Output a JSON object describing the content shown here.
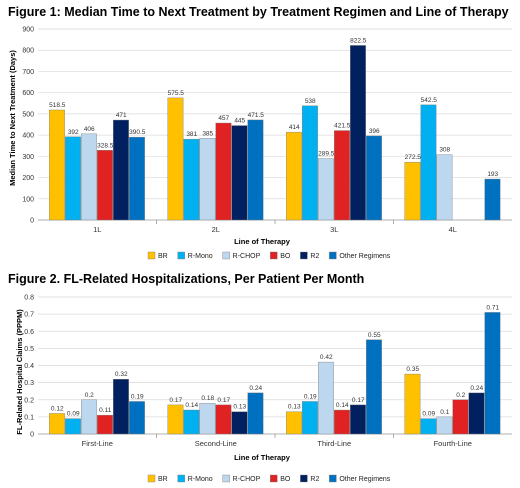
{
  "chart_data": [
    {
      "type": "bar",
      "title": "Figure 1: Median Time to Next Treatment by Treatment Regimen and Line of Therapy",
      "xlabel": "Line of Therapy",
      "ylabel": "Median Time to Next Treatment (Days)",
      "ylim": [
        0,
        900
      ],
      "yticks": [
        "0",
        "100",
        "200",
        "300",
        "400",
        "500",
        "600",
        "700",
        "800",
        "900"
      ],
      "grid": true,
      "legend": "bottom",
      "categories": [
        "1L",
        "2L",
        "3L",
        "4L"
      ],
      "series": [
        {
          "name": "BR",
          "color": "#ffc000",
          "values": [
            518.5,
            575.5,
            414,
            272.5
          ],
          "labels": [
            "518.5",
            "575.5",
            "414",
            "272.5"
          ]
        },
        {
          "name": "R-Mono",
          "color": "#00b0f0",
          "values": [
            392,
            381,
            538,
            542.5
          ],
          "labels": [
            "392",
            "381",
            "538",
            "542.5"
          ]
        },
        {
          "name": "R-CHOP",
          "color": "#bdd7ee",
          "values": [
            406,
            385,
            289.5,
            308
          ],
          "labels": [
            "406",
            "385",
            "289.5",
            "308"
          ]
        },
        {
          "name": "BO",
          "color": "#e02222",
          "values": [
            328.5,
            457,
            421.5,
            0
          ],
          "labels": [
            "328.5",
            "457",
            "421.5",
            ""
          ]
        },
        {
          "name": "R2",
          "color": "#002060",
          "values": [
            471,
            445,
            822.5,
            0
          ],
          "labels": [
            "471",
            "445",
            "822.5",
            ""
          ]
        },
        {
          "name": "Other Regimens",
          "color": "#0070c0",
          "values": [
            390.5,
            471.5,
            396,
            193
          ],
          "labels": [
            "390.5",
            "471.5",
            "396",
            "193"
          ]
        }
      ]
    },
    {
      "type": "bar",
      "title": "Figure 2. FL-Related Hospitalizations, Per Patient Per Month",
      "xlabel": "Line of Therapy",
      "ylabel": "FL-Related Hospital Claims (PPPM)",
      "ylim": [
        0,
        0.8
      ],
      "yticks": [
        "0",
        "0.1",
        "0.2",
        "0.3",
        "0.4",
        "0.5",
        "0.6",
        "0.7",
        "0.8"
      ],
      "grid": true,
      "legend": "bottom",
      "categories": [
        "First-Line",
        "Second-Line",
        "Third-Line",
        "Fourth-Line"
      ],
      "series": [
        {
          "name": "BR",
          "color": "#ffc000",
          "values": [
            0.12,
            0.17,
            0.13,
            0.35
          ],
          "labels": [
            "0.12",
            "0.17",
            "0.13",
            "0.35"
          ]
        },
        {
          "name": "R-Mono",
          "color": "#00b0f0",
          "values": [
            0.09,
            0.14,
            0.19,
            0.09
          ],
          "labels": [
            "0.09",
            "0.14",
            "0.19",
            "0.09"
          ]
        },
        {
          "name": "R-CHOP",
          "color": "#bdd7ee",
          "values": [
            0.2,
            0.18,
            0.42,
            0.1
          ],
          "labels": [
            "0.2",
            "0.18",
            "0.42",
            "0.1"
          ]
        },
        {
          "name": "BO",
          "color": "#e02222",
          "values": [
            0.11,
            0.17,
            0.14,
            0.2
          ],
          "labels": [
            "0.11",
            "0.17",
            "0.14",
            "0.2"
          ]
        },
        {
          "name": "R2",
          "color": "#002060",
          "values": [
            0.32,
            0.13,
            0.17,
            0.24
          ],
          "labels": [
            "0.32",
            "0.13",
            "0.17",
            "0.24"
          ]
        },
        {
          "name": "Other Regimens",
          "color": "#0070c0",
          "values": [
            0.19,
            0.24,
            0.55,
            0.71
          ],
          "labels": [
            "0.19",
            "0.24",
            "0.55",
            "0.71"
          ]
        }
      ]
    }
  ]
}
